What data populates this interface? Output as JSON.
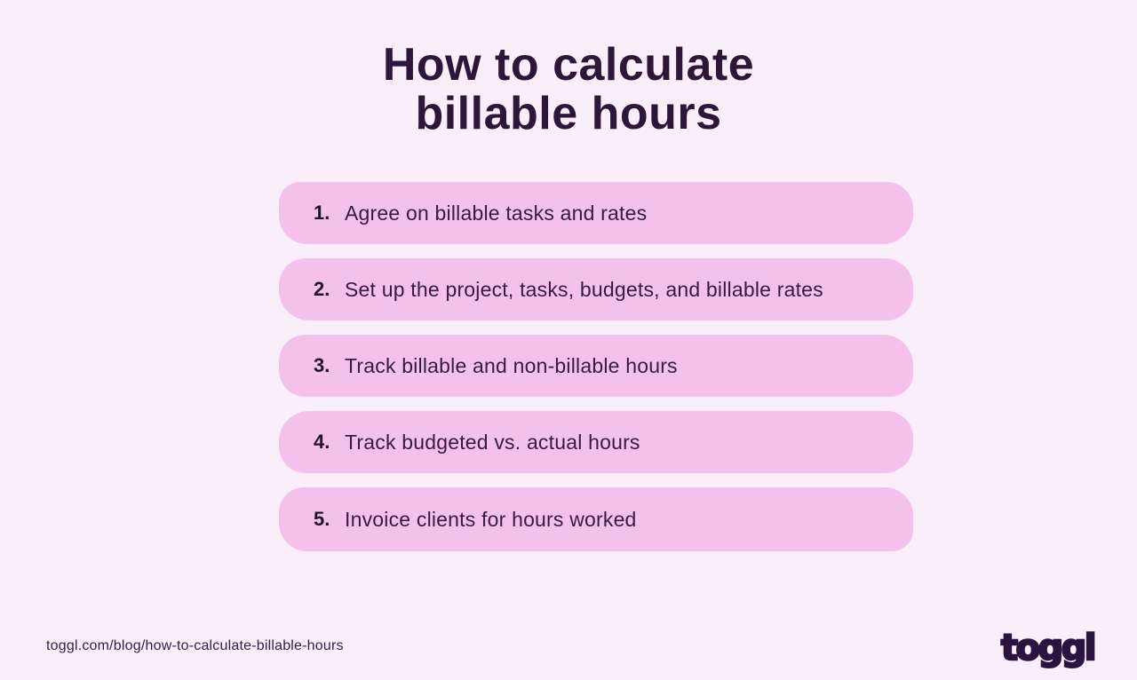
{
  "page": {
    "background_color": "#fbeefb",
    "accent_pill_color": "#f3c1ec",
    "text_color": "#371a46",
    "title_color": "#2e1638"
  },
  "title": {
    "line1": "How to calculate",
    "line2": "billable hours"
  },
  "steps": {
    "items": [
      {
        "number": "1.",
        "text": "Agree on billable tasks and rates"
      },
      {
        "number": "2.",
        "text": "Set up the project, tasks, budgets, and billable rates"
      },
      {
        "number": "3.",
        "text": "Track billable and non-billable hours"
      },
      {
        "number": "4.",
        "text": "Track budgeted vs. actual hours"
      },
      {
        "number": "5.",
        "text": "Invoice clients for hours worked"
      }
    ]
  },
  "footer": {
    "url": "toggl.com/blog/how-to-calculate-billable-hours",
    "logo_text": "toggl"
  }
}
